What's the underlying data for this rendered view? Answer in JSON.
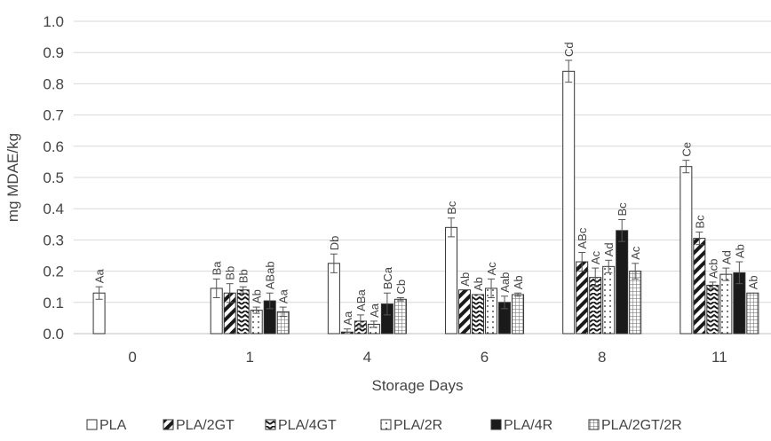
{
  "chart_data": {
    "type": "bar",
    "title": "",
    "xlabel": "Storage Days",
    "ylabel": "mg MDAE/kg",
    "ylim": [
      0,
      1.0
    ],
    "yticks": [
      "0.0",
      "0.1",
      "0.2",
      "0.3",
      "0.4",
      "0.5",
      "0.6",
      "0.7",
      "0.8",
      "0.9",
      "1.0"
    ],
    "grid": true,
    "legend_position": "bottom",
    "categories": [
      "0",
      "1",
      "4",
      "6",
      "8",
      "11"
    ],
    "series": [
      {
        "name": "PLA",
        "pattern": "none",
        "values": [
          0.13,
          0.145,
          0.225,
          0.34,
          0.84,
          0.535
        ],
        "errors": [
          0.02,
          0.03,
          0.03,
          0.03,
          0.035,
          0.02
        ],
        "labels": [
          "Aa",
          "Ba",
          "Db",
          "Bc",
          "Cd",
          "Ce"
        ]
      },
      {
        "name": "PLA/2GT",
        "pattern": "diag",
        "values": [
          null,
          0.13,
          0.005,
          0.14,
          0.23,
          0.305
        ],
        "errors": [
          null,
          0.03,
          0.01,
          0.0,
          0.03,
          0.02
        ],
        "labels": [
          "",
          "Bb",
          "Aa",
          "Ab",
          "ABc",
          "Bc"
        ]
      },
      {
        "name": "PLA/4GT",
        "pattern": "zigzag",
        "values": [
          null,
          0.14,
          0.04,
          0.125,
          0.18,
          0.155
        ],
        "errors": [
          null,
          0.01,
          0.02,
          0.0,
          0.03,
          0.01
        ],
        "labels": [
          "",
          "Bb",
          "ABa",
          "Ab",
          "Ac",
          "Acb"
        ]
      },
      {
        "name": "PLA/2R",
        "pattern": "dots",
        "values": [
          null,
          0.075,
          0.03,
          0.145,
          0.215,
          0.19
        ],
        "errors": [
          null,
          0.01,
          0.01,
          0.03,
          0.02,
          0.02
        ],
        "labels": [
          "",
          "Ab",
          "Aa",
          "Ac",
          "Ad",
          "Ad"
        ]
      },
      {
        "name": "PLA/4R",
        "pattern": "solid",
        "values": [
          null,
          0.105,
          0.095,
          0.1,
          0.33,
          0.195
        ],
        "errors": [
          null,
          0.025,
          0.035,
          0.02,
          0.035,
          0.035
        ],
        "labels": [
          "",
          "ABab",
          "BCa",
          "Aab",
          "Bc",
          "Ab"
        ]
      },
      {
        "name": "PLA/2GT/2R",
        "pattern": "grid",
        "values": [
          null,
          0.07,
          0.11,
          0.125,
          0.2,
          0.13
        ],
        "errors": [
          null,
          0.015,
          0.005,
          0.005,
          0.025,
          0.0
        ],
        "labels": [
          "",
          "Aa",
          "Cb",
          "Ab",
          "Ac",
          "Ab"
        ]
      }
    ]
  }
}
